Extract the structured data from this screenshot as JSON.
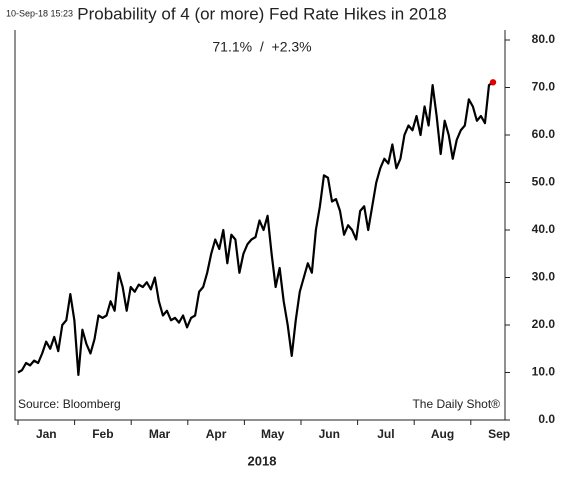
{
  "chart_data": {
    "type": "line",
    "timestamp": "10-Sep-18 15:23",
    "title": "Probability of 4 (or more) Fed Rate Hikes in 2018",
    "subtitle": "71.1%  /  +2.3%",
    "source": "Source: Bloomberg",
    "credit": "The Daily Shot®",
    "x_title": "2018",
    "months": [
      "Jan",
      "Feb",
      "Mar",
      "Apr",
      "May",
      "Jun",
      "Jul",
      "Aug",
      "Sep"
    ],
    "color": "#000000",
    "last_point_color": "#e00000",
    "values": [
      10,
      10.5,
      12,
      11.5,
      12.5,
      12,
      14,
      16.5,
      15,
      17.5,
      14.5,
      20,
      21,
      26.5,
      21,
      9.5,
      19,
      16,
      14,
      17,
      22,
      21.5,
      22,
      25,
      23,
      31,
      28,
      23,
      28,
      27,
      28.5,
      28,
      29,
      27.5,
      30,
      25,
      22,
      23,
      21,
      21.5,
      20.5,
      22,
      19.5,
      21.5,
      22,
      27,
      28,
      31,
      35,
      38,
      36,
      40,
      33,
      39,
      38,
      31,
      35,
      37,
      38,
      38.5,
      42,
      40,
      43,
      35,
      28,
      32,
      25,
      20,
      13.5,
      21,
      27,
      30,
      33,
      31,
      40,
      45,
      51.5,
      51,
      46,
      46.5,
      44,
      39,
      41,
      40,
      38,
      44,
      45,
      40,
      45,
      50,
      53,
      55,
      54,
      58,
      53,
      55,
      60,
      62,
      61,
      64,
      60,
      66,
      62,
      70.5,
      64,
      56,
      63,
      60,
      55,
      59,
      61,
      62,
      67.5,
      66,
      63,
      64,
      62.5,
      70.5,
      71.1
    ],
    "ylim": [
      0,
      80
    ],
    "yticks": [
      {
        "value": 0,
        "label": "0.0"
      },
      {
        "value": 10,
        "label": "10.0"
      },
      {
        "value": 20,
        "label": "20.0"
      },
      {
        "value": 30,
        "label": "30.0"
      },
      {
        "value": 40,
        "label": "40.0"
      },
      {
        "value": 50,
        "label": "50.0"
      },
      {
        "value": 60,
        "label": "60.0"
      },
      {
        "value": 70,
        "label": "70.0"
      },
      {
        "value": 80,
        "label": "80.0"
      }
    ]
  }
}
